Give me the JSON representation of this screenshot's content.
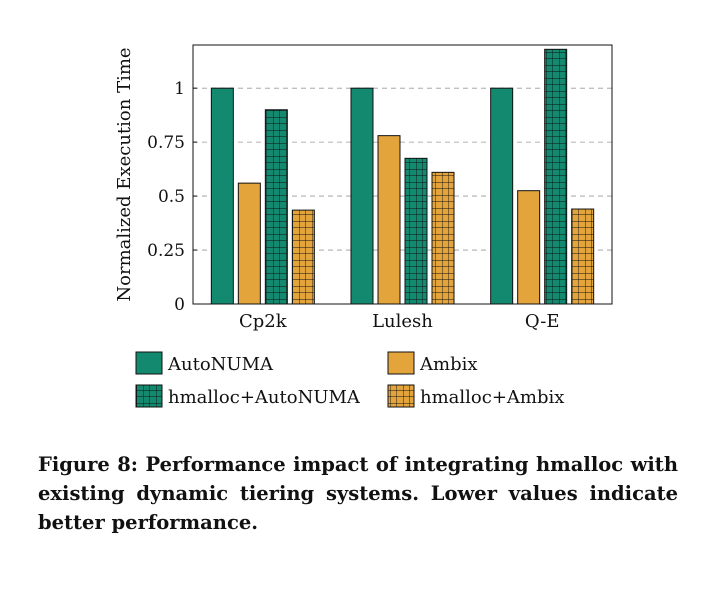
{
  "chart_data": {
    "type": "bar",
    "categories": [
      "Cp2k",
      "Lulesh",
      "Q-E"
    ],
    "series": [
      {
        "name": "AutoNUMA",
        "values": [
          1.0,
          1.0,
          1.0
        ],
        "color": "#138a70",
        "pattern": "none"
      },
      {
        "name": "Ambix",
        "values": [
          0.56,
          0.78,
          0.525
        ],
        "color": "#e3a43c",
        "pattern": "none"
      },
      {
        "name": "hmalloc+AutoNUMA",
        "values": [
          0.9,
          0.675,
          1.18
        ],
        "color": "#138a70",
        "pattern": "grid"
      },
      {
        "name": "hmalloc+Ambix",
        "values": [
          0.435,
          0.61,
          0.44
        ],
        "color": "#e3a43c",
        "pattern": "grid"
      }
    ],
    "title": "",
    "xlabel": "",
    "ylabel": "Normalized Execution Time",
    "ylim": [
      0,
      1.2
    ],
    "yticks": [
      0,
      0.25,
      0.5,
      0.75,
      1
    ],
    "ytick_labels": [
      "0",
      "0.25",
      "0.5",
      "0.75",
      "1"
    ],
    "grid": "horizontal dashed",
    "legend_position": "below"
  },
  "caption": "Figure 8: Performance impact of integrating hmalloc with existing dynamic tiering systems. Lower values indicate better performance."
}
